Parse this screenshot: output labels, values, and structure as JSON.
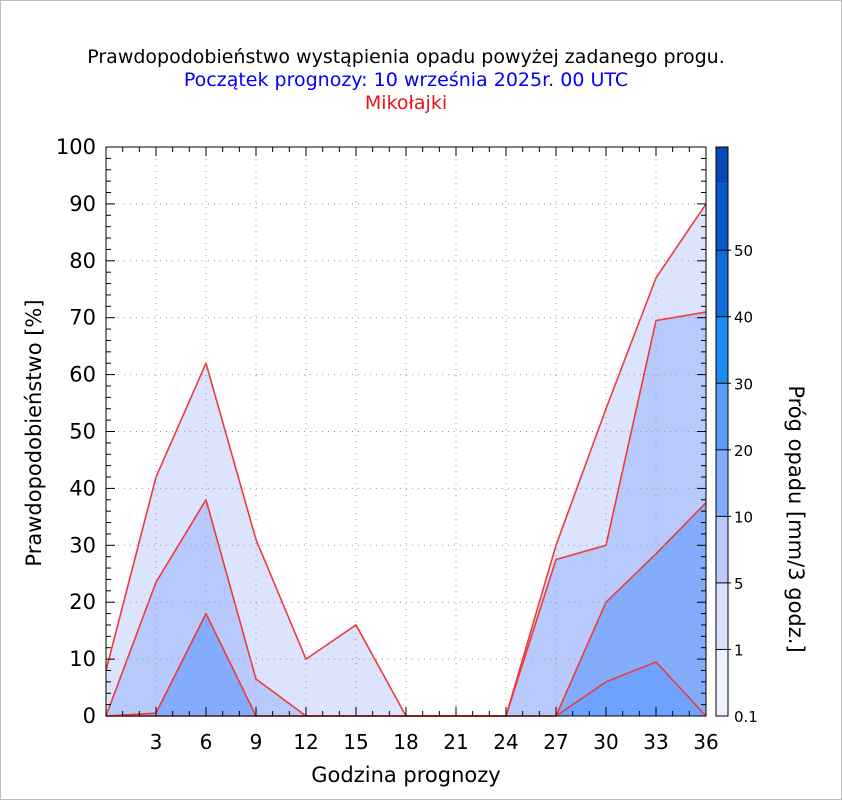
{
  "chart_data": {
    "type": "area",
    "title": "Prawdopodobieństwo wystąpienia opadu powyżej zadanego progu.",
    "subtitle": "Początek prognozy: 10 września 2025r. 00 UTC",
    "location": "Mikołajki",
    "xlabel": "Godzina prognozy",
    "ylabel": "Prawdopodobieństwo [%]",
    "xlim": [
      0,
      36
    ],
    "ylim": [
      0,
      100
    ],
    "x_ticks": [
      3,
      6,
      9,
      12,
      15,
      18,
      21,
      24,
      27,
      30,
      33,
      36
    ],
    "y_ticks": [
      0,
      10,
      20,
      30,
      40,
      50,
      60,
      70,
      80,
      90,
      100
    ],
    "grid": true,
    "x": [
      0,
      3,
      6,
      9,
      12,
      15,
      18,
      21,
      24,
      27,
      30,
      33,
      36
    ],
    "series": [
      {
        "threshold": 0.1,
        "color": "#dce3fd",
        "values": [
          8,
          42,
          62,
          31,
          10,
          16,
          0,
          0,
          0,
          30,
          54,
          77,
          90
        ]
      },
      {
        "threshold": 1,
        "color": "#b8c9fc",
        "values": [
          0,
          23.5,
          38,
          6.5,
          0,
          0,
          0,
          0,
          0,
          27.5,
          30,
          69.5,
          71
        ]
      },
      {
        "threshold": 5,
        "color": "#84acfd",
        "values": [
          0,
          0.5,
          18,
          0,
          0,
          0,
          0,
          0,
          0,
          0,
          20,
          28.5,
          37.5
        ]
      },
      {
        "threshold": 10,
        "color": "#6fa2ff",
        "values": [
          0,
          0,
          0,
          0,
          0,
          0,
          0,
          0,
          0,
          0,
          6,
          9.5,
          0
        ]
      }
    ],
    "colorbar": {
      "label": "Próg opadu [mm/3 godz.]",
      "tick_labels": [
        "0.1",
        "1",
        "5",
        "10",
        "20",
        "30",
        "40",
        "50"
      ],
      "bands": [
        {
          "color": "#eef1ff"
        },
        {
          "color": "#dce3fd"
        },
        {
          "color": "#b8c9fc"
        },
        {
          "color": "#84acfd"
        },
        {
          "color": "#5b9af6"
        },
        {
          "color": "#1e8df0"
        },
        {
          "color": "#0f6ed8"
        },
        {
          "color": "#0a5bc9"
        },
        {
          "color": "#0948b5"
        }
      ]
    },
    "line_color": "#ef3a3a",
    "grid_color": "#9a9a9a"
  }
}
